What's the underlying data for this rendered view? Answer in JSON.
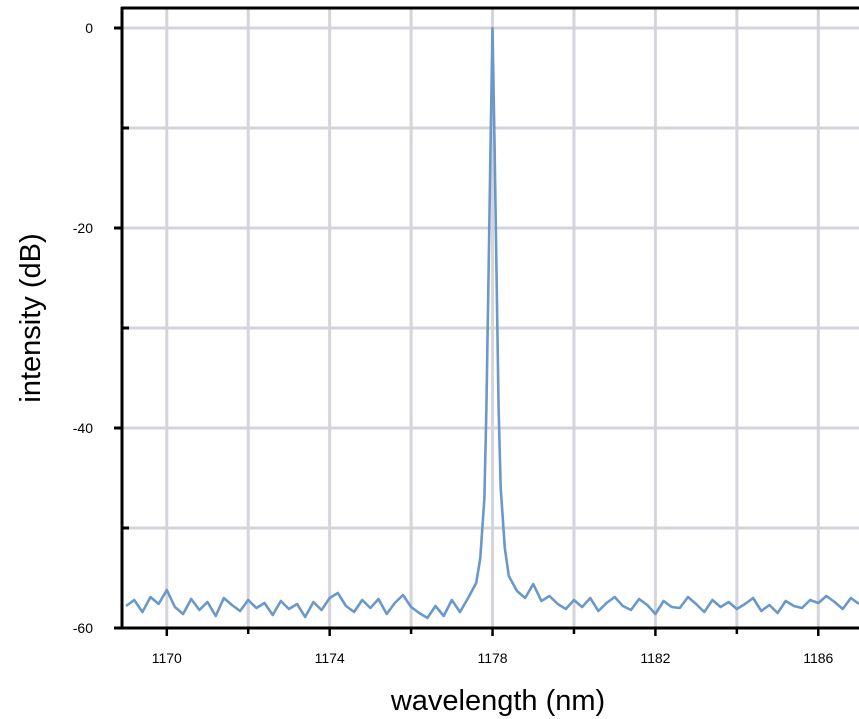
{
  "chart_data": {
    "type": "line",
    "title": "",
    "xlabel": "wavelength (nm)",
    "ylabel": "intensity (dB)",
    "xlim": [
      1168.9,
      1187.0
    ],
    "ylim": [
      -60,
      2
    ],
    "x_ticks": [
      1170,
      1174,
      1178,
      1182,
      1186
    ],
    "x_tick_labels": [
      "1170",
      "1174",
      "1178",
      "1182",
      "1186"
    ],
    "y_ticks": [
      0,
      -20,
      -40,
      -60
    ],
    "y_tick_labels": [
      "0",
      "-20",
      "-40",
      "-60"
    ],
    "x_gridlines": [
      1170,
      1172,
      1174,
      1176,
      1178,
      1180,
      1182,
      1184,
      1186
    ],
    "y_gridlines": [
      0,
      -10,
      -20,
      -30,
      -40,
      -50,
      -60
    ],
    "grid": true,
    "legend": "none",
    "colors": {
      "series": "#6a98c9",
      "grid": "#d4d4dc",
      "axis": "#000000"
    },
    "series": [
      {
        "x": [
          1169.0,
          1169.2,
          1169.4,
          1169.6,
          1169.8,
          1170.0,
          1170.2,
          1170.4,
          1170.6,
          1170.8,
          1171.0,
          1171.2,
          1171.4,
          1171.6,
          1171.8,
          1172.0,
          1172.2,
          1172.4,
          1172.6,
          1172.8,
          1173.0,
          1173.2,
          1173.4,
          1173.6,
          1173.8,
          1174.0,
          1174.2,
          1174.4,
          1174.6,
          1174.8,
          1175.0,
          1175.2,
          1175.4,
          1175.6,
          1175.8,
          1176.0,
          1176.2,
          1176.4,
          1176.6,
          1176.8,
          1177.0,
          1177.2,
          1177.4,
          1177.6,
          1177.7,
          1177.8,
          1177.85,
          1177.9,
          1177.95,
          1178.0,
          1178.05,
          1178.1,
          1178.15,
          1178.2,
          1178.3,
          1178.4,
          1178.6,
          1178.8,
          1179.0,
          1179.2,
          1179.4,
          1179.6,
          1179.8,
          1180.0,
          1180.2,
          1180.4,
          1180.6,
          1180.8,
          1181.0,
          1181.2,
          1181.4,
          1181.6,
          1181.8,
          1182.0,
          1182.2,
          1182.4,
          1182.6,
          1182.8,
          1183.0,
          1183.2,
          1183.4,
          1183.6,
          1183.8,
          1184.0,
          1184.2,
          1184.4,
          1184.6,
          1184.8,
          1185.0,
          1185.2,
          1185.4,
          1185.6,
          1185.8,
          1186.0,
          1186.2,
          1186.4,
          1186.6,
          1186.8,
          1187.0
        ],
        "y": [
          -57.8,
          -57.2,
          -58.4,
          -56.9,
          -57.6,
          -56.2,
          -57.9,
          -58.6,
          -57.1,
          -58.2,
          -57.4,
          -58.8,
          -57.0,
          -57.7,
          -58.3,
          -57.2,
          -58.0,
          -57.5,
          -58.7,
          -57.3,
          -58.1,
          -57.6,
          -58.9,
          -57.4,
          -58.2,
          -57.0,
          -56.5,
          -57.8,
          -58.4,
          -57.2,
          -58.0,
          -57.1,
          -58.6,
          -57.5,
          -56.7,
          -57.9,
          -58.5,
          -59.0,
          -57.8,
          -58.8,
          -57.2,
          -58.4,
          -57.0,
          -55.5,
          -53.0,
          -47.0,
          -38.0,
          -25.0,
          -12.0,
          0.0,
          -12.0,
          -25.0,
          -38.0,
          -46.0,
          -52.0,
          -54.8,
          -56.3,
          -57.0,
          -55.6,
          -57.3,
          -56.8,
          -57.6,
          -58.1,
          -57.2,
          -57.9,
          -57.0,
          -58.3,
          -57.5,
          -56.9,
          -57.8,
          -58.2,
          -57.1,
          -57.7,
          -58.6,
          -57.3,
          -57.9,
          -58.0,
          -56.9,
          -57.6,
          -58.4,
          -57.2,
          -57.9,
          -57.4,
          -58.1,
          -57.6,
          -57.0,
          -58.3,
          -57.7,
          -58.5,
          -57.3,
          -57.8,
          -58.0,
          -57.2,
          -57.5,
          -56.8,
          -57.4,
          -58.1,
          -57.0,
          -57.6
        ]
      }
    ]
  }
}
